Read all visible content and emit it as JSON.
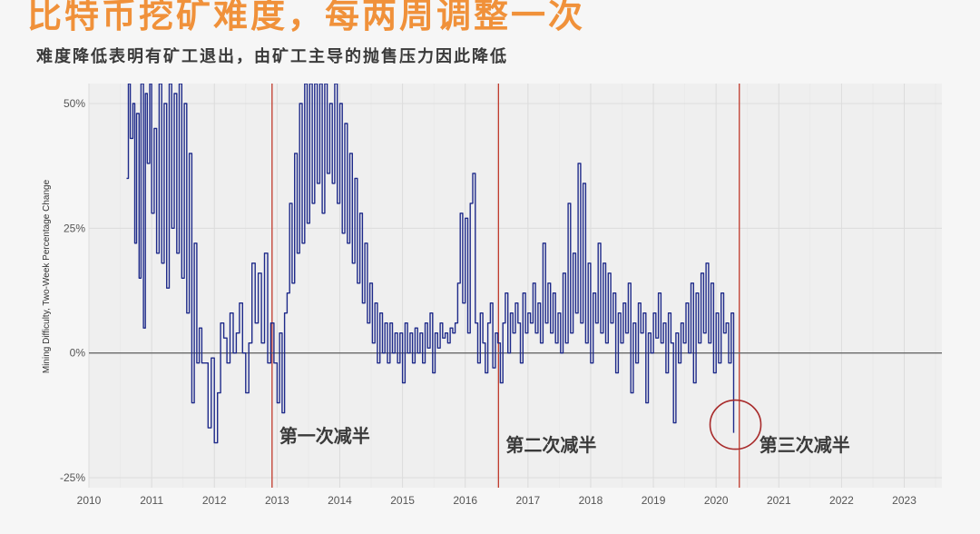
{
  "header": {
    "title": "比特币挖矿难度，每两周调整一次",
    "subtitle": "难度降低表明有矿工退出，由矿工主导的抛售压力因此降低"
  },
  "chart_data": {
    "type": "line",
    "title": "比特币挖矿难度，每两周调整一次",
    "subtitle": "难度降低表明有矿工退出，由矿工主导的抛售压力因此降低",
    "xlabel": "",
    "ylabel": "Mining Difficulty, Two-Week Percentage Change",
    "xlim": [
      2010,
      2023.6
    ],
    "ylim": [
      -27,
      54
    ],
    "x_ticks": [
      "2010",
      "2011",
      "2012",
      "2013",
      "2014",
      "2015",
      "2016",
      "2017",
      "2018",
      "2019",
      "2020",
      "2021",
      "2022",
      "2023"
    ],
    "y_ticks": [
      {
        "value": -25,
        "label": "-25%"
      },
      {
        "value": 0,
        "label": "0%"
      },
      {
        "value": 25,
        "label": "25%"
      },
      {
        "value": 50,
        "label": "50%"
      }
    ],
    "grid": true,
    "colors": {
      "series": "#1e2a8a",
      "halving": "#c0392b",
      "zero_line": "#6a6a6a",
      "circle": "#a82b2b",
      "grid": "#dcdcdc"
    },
    "series": [
      {
        "name": "",
        "x": [
          2010.6,
          2010.63,
          2010.66,
          2010.7,
          2010.73,
          2010.76,
          2010.8,
          2010.83,
          2010.87,
          2010.9,
          2010.93,
          2010.97,
          2011.0,
          2011.04,
          2011.08,
          2011.12,
          2011.16,
          2011.2,
          2011.24,
          2011.28,
          2011.32,
          2011.36,
          2011.4,
          2011.44,
          2011.48,
          2011.52,
          2011.56,
          2011.6,
          2011.64,
          2011.68,
          2011.72,
          2011.76,
          2011.8,
          2011.85,
          2011.9,
          2011.95,
          2012.0,
          2012.05,
          2012.1,
          2012.15,
          2012.2,
          2012.25,
          2012.3,
          2012.35,
          2012.4,
          2012.45,
          2012.5,
          2012.55,
          2012.6,
          2012.65,
          2012.7,
          2012.75,
          2012.8,
          2012.85,
          2012.9,
          2012.95,
          2013.0,
          2013.04,
          2013.08,
          2013.12,
          2013.16,
          2013.2,
          2013.24,
          2013.28,
          2013.32,
          2013.36,
          2013.4,
          2013.44,
          2013.48,
          2013.52,
          2013.56,
          2013.6,
          2013.64,
          2013.68,
          2013.72,
          2013.76,
          2013.8,
          2013.84,
          2013.88,
          2013.92,
          2013.96,
          2014.0,
          2014.04,
          2014.08,
          2014.12,
          2014.16,
          2014.2,
          2014.24,
          2014.28,
          2014.32,
          2014.36,
          2014.4,
          2014.44,
          2014.48,
          2014.52,
          2014.56,
          2014.6,
          2014.64,
          2014.68,
          2014.72,
          2014.76,
          2014.8,
          2014.84,
          2014.88,
          2014.92,
          2014.96,
          2015.0,
          2015.04,
          2015.08,
          2015.12,
          2015.16,
          2015.2,
          2015.24,
          2015.28,
          2015.32,
          2015.36,
          2015.4,
          2015.44,
          2015.48,
          2015.52,
          2015.56,
          2015.6,
          2015.64,
          2015.68,
          2015.72,
          2015.76,
          2015.8,
          2015.84,
          2015.88,
          2015.92,
          2015.96,
          2016.0,
          2016.04,
          2016.08,
          2016.12,
          2016.16,
          2016.2,
          2016.24,
          2016.28,
          2016.32,
          2016.36,
          2016.4,
          2016.44,
          2016.48,
          2016.52,
          2016.56,
          2016.6,
          2016.64,
          2016.68,
          2016.72,
          2016.76,
          2016.8,
          2016.84,
          2016.88,
          2016.92,
          2016.96,
          2017.0,
          2017.04,
          2017.08,
          2017.12,
          2017.16,
          2017.2,
          2017.24,
          2017.28,
          2017.32,
          2017.36,
          2017.4,
          2017.44,
          2017.48,
          2017.52,
          2017.56,
          2017.6,
          2017.64,
          2017.68,
          2017.72,
          2017.76,
          2017.8,
          2017.84,
          2017.88,
          2017.92,
          2017.96,
          2018.0,
          2018.04,
          2018.08,
          2018.12,
          2018.16,
          2018.2,
          2018.24,
          2018.28,
          2018.32,
          2018.36,
          2018.4,
          2018.44,
          2018.48,
          2018.52,
          2018.56,
          2018.6,
          2018.64,
          2018.68,
          2018.72,
          2018.76,
          2018.8,
          2018.84,
          2018.88,
          2018.92,
          2018.96,
          2019.0,
          2019.04,
          2019.08,
          2019.12,
          2019.16,
          2019.2,
          2019.24,
          2019.28,
          2019.32,
          2019.36,
          2019.4,
          2019.44,
          2019.48,
          2019.52,
          2019.56,
          2019.6,
          2019.64,
          2019.68,
          2019.72,
          2019.76,
          2019.8,
          2019.84,
          2019.88,
          2019.92,
          2019.96,
          2020.0,
          2020.04,
          2020.08,
          2020.12,
          2020.16,
          2020.2,
          2020.24,
          2020.28
        ],
        "values": [
          35,
          54,
          43,
          50,
          22,
          48,
          15,
          54,
          5,
          52,
          38,
          54,
          28,
          45,
          20,
          54,
          18,
          50,
          13,
          54,
          25,
          52,
          20,
          54,
          15,
          50,
          8,
          40,
          -10,
          22,
          -2,
          5,
          -2,
          -2,
          -15,
          -1,
          -18,
          -8,
          6,
          3,
          -2,
          8,
          0,
          4,
          10,
          0,
          -8,
          2,
          18,
          6,
          16,
          2,
          20,
          -2,
          6,
          -2,
          -10,
          4,
          -12,
          8,
          12,
          30,
          14,
          40,
          20,
          50,
          22,
          54,
          26,
          54,
          30,
          54,
          34,
          54,
          28,
          54,
          36,
          50,
          34,
          54,
          30,
          50,
          24,
          46,
          22,
          40,
          18,
          35,
          14,
          28,
          10,
          22,
          6,
          14,
          2,
          10,
          -2,
          8,
          0,
          6,
          -2,
          6,
          0,
          4,
          -2,
          4,
          -6,
          6,
          0,
          4,
          -2,
          5,
          0,
          4,
          -2,
          6,
          1,
          8,
          -4,
          4,
          1,
          6,
          3,
          4,
          2,
          5,
          4,
          6,
          14,
          28,
          10,
          27,
          4,
          30,
          36,
          6,
          -2,
          8,
          2,
          -4,
          6,
          10,
          -3,
          4,
          2,
          -6,
          6,
          12,
          0,
          8,
          4,
          10,
          6,
          -2,
          12,
          4,
          8,
          6,
          14,
          4,
          10,
          2,
          22,
          6,
          14,
          4,
          12,
          2,
          8,
          0,
          16,
          2,
          30,
          4,
          20,
          8,
          38,
          6,
          34,
          2,
          18,
          -2,
          12,
          6,
          22,
          4,
          18,
          2,
          16,
          6,
          12,
          -4,
          8,
          2,
          10,
          4,
          14,
          -8,
          6,
          -2,
          10,
          4,
          8,
          -10,
          4,
          0,
          8,
          3,
          12,
          2,
          6,
          -4,
          8,
          2,
          -14,
          4,
          -2,
          6,
          2,
          10,
          0,
          14,
          -6,
          12,
          2,
          16,
          4,
          18,
          2,
          14,
          -4,
          8,
          -2,
          12,
          4,
          6,
          -2,
          8,
          -16
        ]
      }
    ],
    "annotations": [
      {
        "text": "第一次减半",
        "x": 2012.92
      },
      {
        "text": "第二次减半",
        "x": 2016.53
      },
      {
        "text": "第三次减半",
        "x": 2020.37
      }
    ],
    "highlight": {
      "label": "2020 drop circled",
      "x": 2020.28,
      "y": -14
    }
  }
}
